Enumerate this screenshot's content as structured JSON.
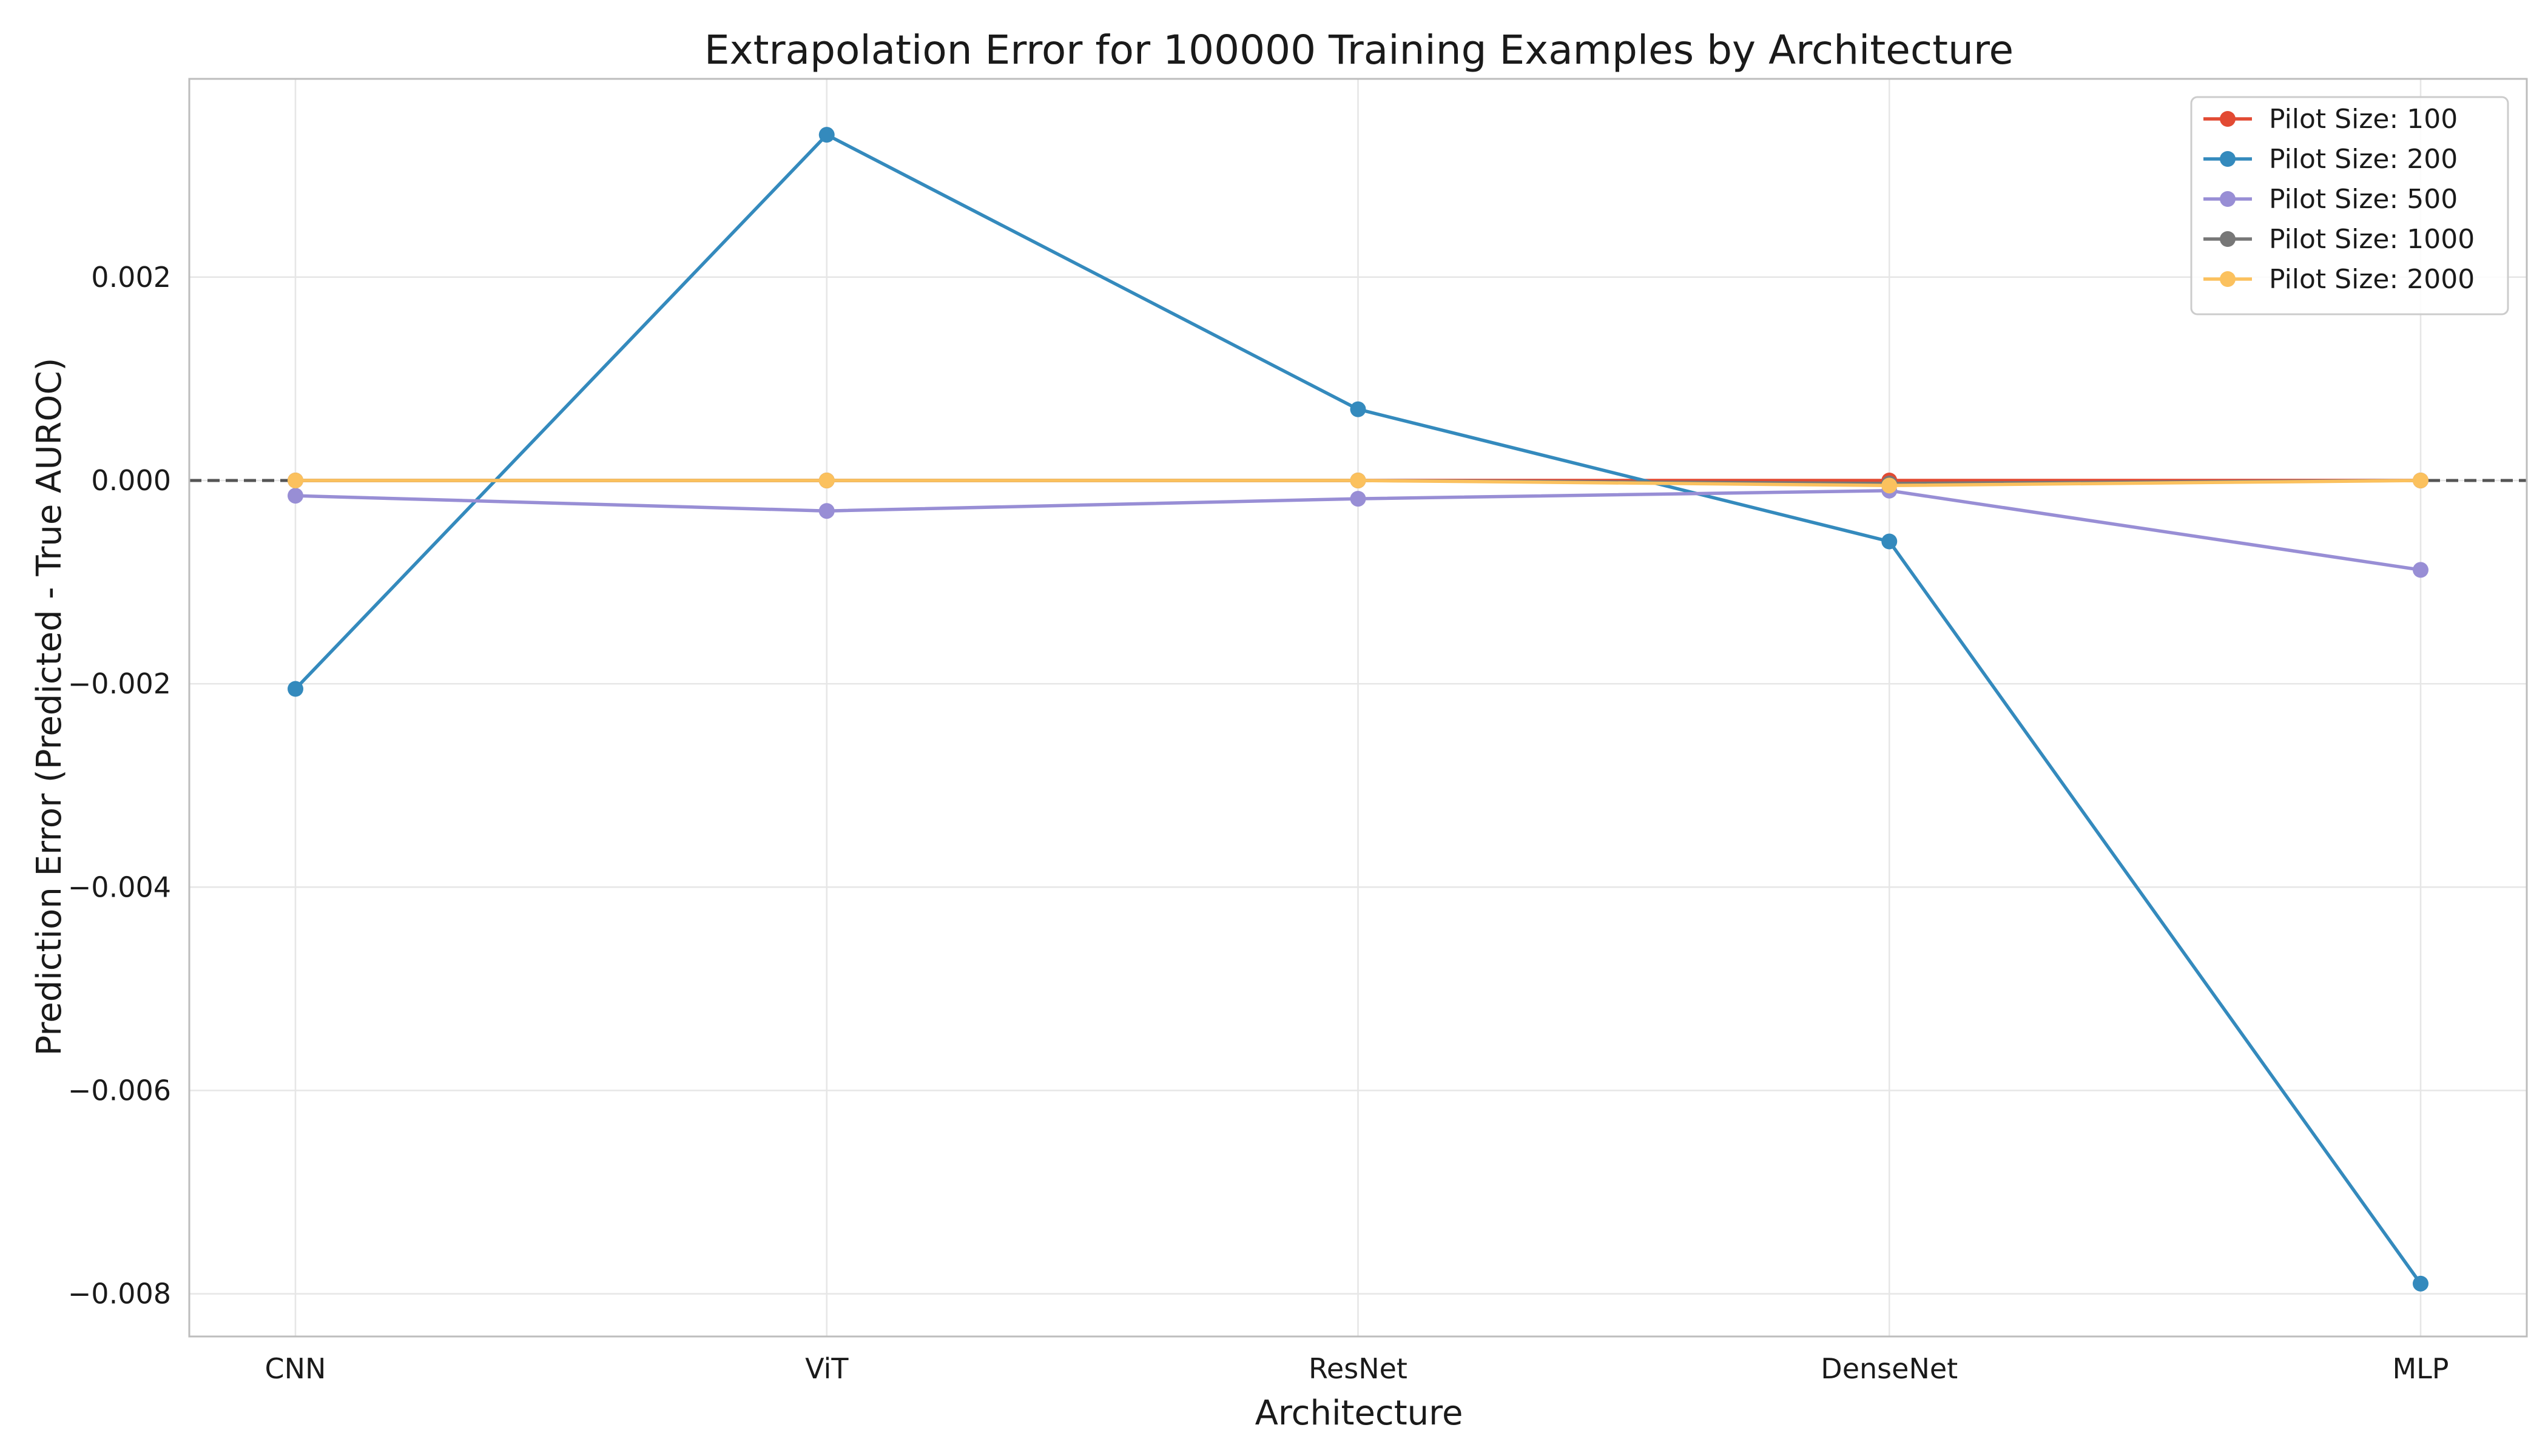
{
  "chart_data": {
    "type": "line",
    "title": "Extrapolation Error for 100000 Training Examples by Architecture",
    "xlabel": "Architecture",
    "ylabel": "Prediction Error (Predicted - True AUROC)",
    "categories": [
      "CNN",
      "ViT",
      "ResNet",
      "DenseNet",
      "MLP"
    ],
    "ylim": [
      -0.00842,
      0.00395
    ],
    "yticks": [
      0.002,
      0.0,
      -0.002,
      -0.004,
      -0.006,
      -0.008
    ],
    "ytick_labels": [
      "0.002",
      "0.000",
      "−0.002",
      "−0.004",
      "−0.006",
      "−0.008"
    ],
    "grid": true,
    "reference_line": {
      "y": 0,
      "style": "dashed",
      "color": "#555555"
    },
    "legend_position": "top-right",
    "series": [
      {
        "name": "Pilot Size: 100",
        "color": "#e24a33",
        "values": [
          0.0,
          0.0,
          0.0,
          0.0,
          0.0
        ]
      },
      {
        "name": "Pilot Size: 200",
        "color": "#348abd",
        "values": [
          -0.00205,
          0.0034,
          0.0007,
          -0.0006,
          -0.0079
        ]
      },
      {
        "name": "Pilot Size: 500",
        "color": "#988ed5",
        "values": [
          -0.00015,
          -0.0003,
          -0.00018,
          -0.0001,
          -0.00088
        ]
      },
      {
        "name": "Pilot Size: 1000",
        "color": "#777777",
        "values": [
          0.0,
          0.0,
          0.0,
          -3e-05,
          0.0
        ]
      },
      {
        "name": "Pilot Size: 2000",
        "color": "#fbc15e",
        "values": [
          0.0,
          0.0,
          0.0,
          -5e-05,
          0.0
        ]
      }
    ]
  }
}
